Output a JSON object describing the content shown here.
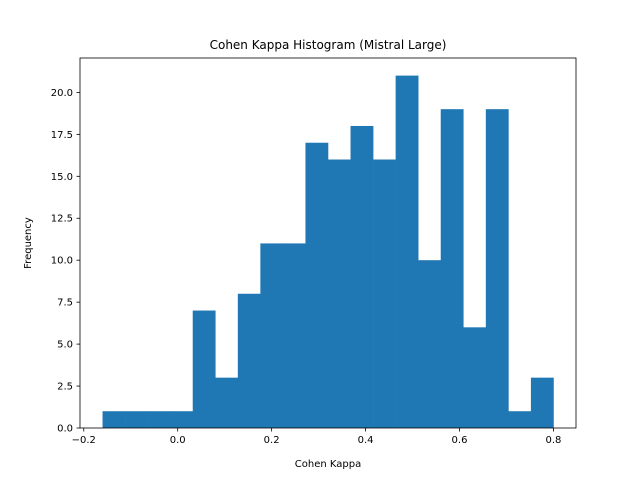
{
  "chart_data": {
    "type": "bar",
    "title": "Cohen Kappa Histogram (Mistral Large)",
    "xlabel": "Cohen Kappa",
    "ylabel": "Frequency",
    "bar_color": "#1f77b4",
    "bin_edges": [
      -0.16,
      -0.112,
      -0.064,
      -0.016,
      0.032,
      0.08,
      0.128,
      0.176,
      0.224,
      0.272,
      0.32,
      0.368,
      0.416,
      0.464,
      0.512,
      0.56,
      0.608,
      0.656,
      0.704,
      0.752,
      0.8
    ],
    "values": [
      1,
      1,
      1,
      1,
      7,
      3,
      8,
      11,
      11,
      17,
      16,
      18,
      16,
      21,
      10,
      19,
      6,
      19,
      1,
      3
    ],
    "xlim": [
      -0.208,
      0.848
    ],
    "ylim": [
      0,
      22.05
    ],
    "x_ticks": [
      {
        "value": -0.2,
        "label": "−0.2"
      },
      {
        "value": 0.0,
        "label": "0.0"
      },
      {
        "value": 0.2,
        "label": "0.2"
      },
      {
        "value": 0.4,
        "label": "0.4"
      },
      {
        "value": 0.6,
        "label": "0.6"
      },
      {
        "value": 0.8,
        "label": "0.8"
      }
    ],
    "y_ticks": [
      {
        "value": 0.0,
        "label": "0.0"
      },
      {
        "value": 2.5,
        "label": "2.5"
      },
      {
        "value": 5.0,
        "label": "5.0"
      },
      {
        "value": 7.5,
        "label": "7.5"
      },
      {
        "value": 10.0,
        "label": "10.0"
      },
      {
        "value": 12.5,
        "label": "12.5"
      },
      {
        "value": 15.0,
        "label": "15.0"
      },
      {
        "value": 17.5,
        "label": "17.5"
      },
      {
        "value": 20.0,
        "label": "20.0"
      }
    ],
    "grid": false,
    "legend": "none"
  }
}
